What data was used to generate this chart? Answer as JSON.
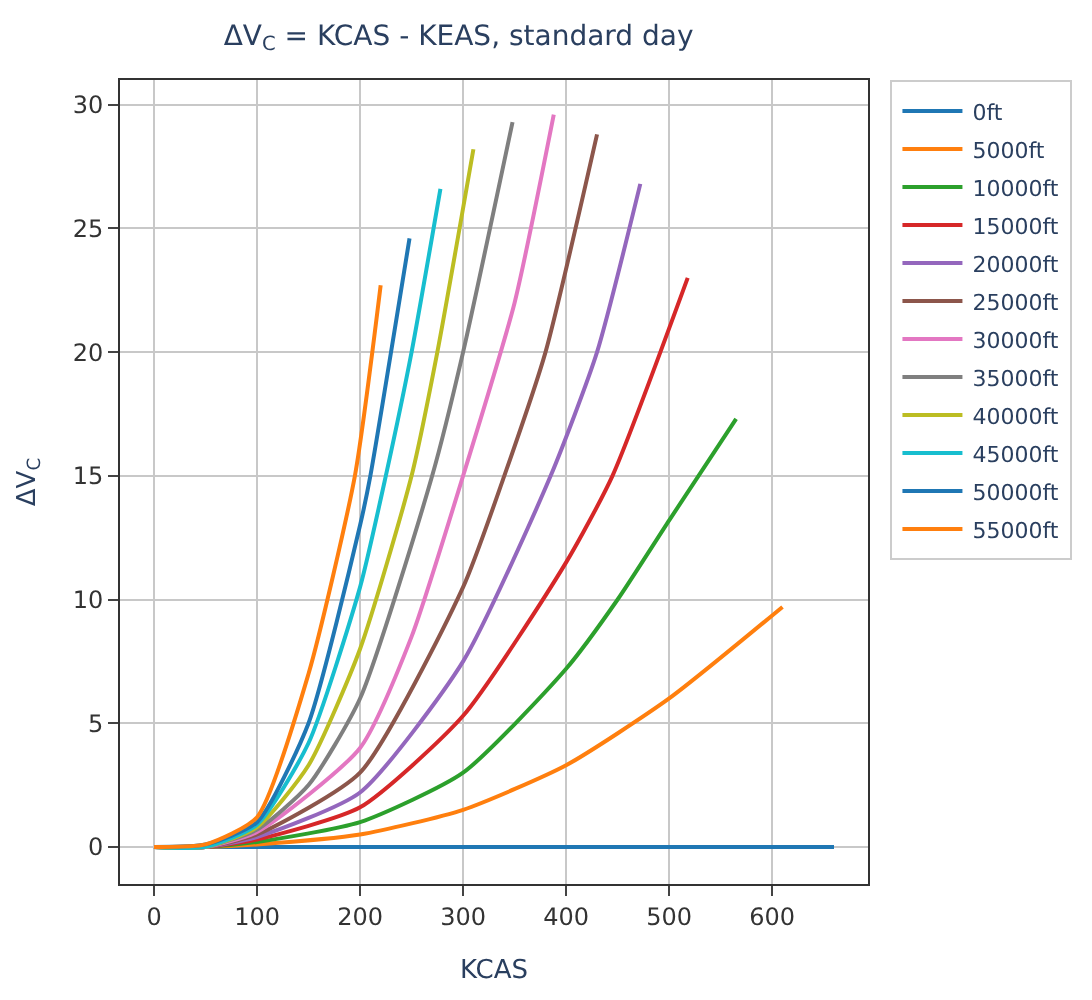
{
  "chart_data": {
    "type": "line",
    "title": "ΔV$_{C}$ = KCAS - KEAS, standard day",
    "xlabel": "KCAS",
    "ylabel": "ΔV$_{C}$",
    "xlim": [
      -33,
      693
    ],
    "ylim": [
      -1.5,
      31
    ],
    "xticks": [
      0,
      100,
      200,
      300,
      400,
      500,
      600
    ],
    "yticks": [
      0,
      5,
      10,
      15,
      20,
      25,
      30
    ],
    "grid": true,
    "legend": "right",
    "marker": "none",
    "line_style": "solid",
    "series": [
      {
        "name": "0ft",
        "color": "#1f77b4",
        "x": [
          0,
          660
        ],
        "values": [
          0,
          0
        ]
      },
      {
        "name": "5000ft",
        "color": "#ff7f0e",
        "x": [
          0,
          50,
          100,
          200,
          300,
          400,
          500,
          610
        ],
        "values": [
          0,
          0,
          0.1,
          0.5,
          1.5,
          3.3,
          6.0,
          9.7
        ]
      },
      {
        "name": "10000ft",
        "color": "#2ca02c",
        "x": [
          0,
          50,
          100,
          200,
          300,
          400,
          450,
          500,
          565
        ],
        "values": [
          0,
          0,
          0.2,
          1.0,
          3.0,
          7.2,
          10,
          13.2,
          17.3
        ]
      },
      {
        "name": "15000ft",
        "color": "#d62728",
        "x": [
          0,
          50,
          100,
          200,
          300,
          400,
          445,
          518
        ],
        "values": [
          0,
          0,
          0.3,
          1.6,
          5.3,
          11.5,
          15,
          23
        ]
      },
      {
        "name": "20000ft",
        "color": "#9467bd",
        "x": [
          0,
          50,
          100,
          200,
          300,
          385,
          430,
          472
        ],
        "values": [
          0,
          0,
          0.4,
          2.2,
          7.5,
          15,
          20,
          26.8
        ]
      },
      {
        "name": "25000ft",
        "color": "#8c564b",
        "x": [
          0,
          50,
          100,
          200,
          300,
          340,
          380,
          430
        ],
        "values": [
          0,
          0,
          0.5,
          3.0,
          10.5,
          15,
          20,
          28.8
        ]
      },
      {
        "name": "30000ft",
        "color": "#e377c2",
        "x": [
          0,
          50,
          100,
          200,
          250,
          300,
          350,
          388
        ],
        "values": [
          0,
          0,
          0.6,
          4.0,
          8.5,
          15,
          22,
          29.6
        ]
      },
      {
        "name": "35000ft",
        "color": "#7f7f7f",
        "x": [
          0,
          50,
          100,
          150,
          200,
          270,
          300,
          348
        ],
        "values": [
          0,
          0,
          0.7,
          2.5,
          6.0,
          15,
          20,
          29.3
        ]
      },
      {
        "name": "40000ft",
        "color": "#bcbd22",
        "x": [
          0,
          50,
          100,
          150,
          200,
          250,
          275,
          310
        ],
        "values": [
          0,
          0,
          0.8,
          3.3,
          8.0,
          15,
          20,
          28.2
        ]
      },
      {
        "name": "45000ft",
        "color": "#17becf",
        "x": [
          0,
          50,
          100,
          150,
          200,
          225,
          250,
          278
        ],
        "values": [
          0,
          0,
          0.9,
          4.2,
          10.5,
          15,
          20,
          26.6
        ]
      },
      {
        "name": "50000ft",
        "color": "#1f77b4",
        "x": [
          0,
          50,
          100,
          150,
          200,
          210,
          248
        ],
        "values": [
          0,
          0.1,
          1.0,
          5.0,
          13,
          15,
          24.6
        ]
      },
      {
        "name": "55000ft",
        "color": "#ff7f0e",
        "x": [
          0,
          50,
          100,
          150,
          195,
          220
        ],
        "values": [
          0,
          0.1,
          1.2,
          7.0,
          15,
          22.7
        ]
      }
    ]
  }
}
